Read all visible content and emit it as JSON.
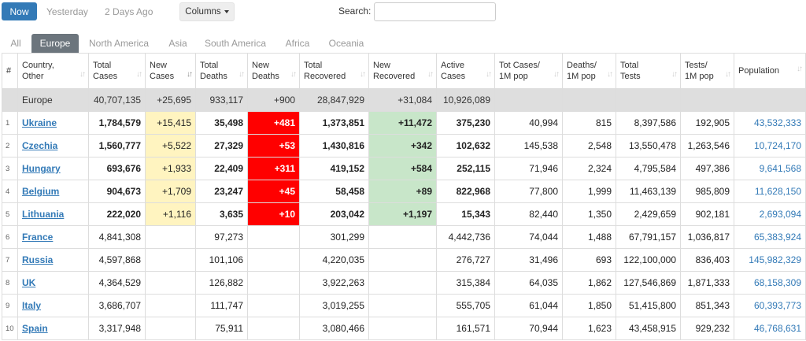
{
  "toolbar": {
    "now": "Now",
    "yesterday": "Yesterday",
    "two_days_ago": "2 Days Ago",
    "columns": "Columns",
    "search_label": "Search:",
    "search_value": ""
  },
  "tabs": [
    "All",
    "Europe",
    "North America",
    "Asia",
    "South America",
    "Africa",
    "Oceania"
  ],
  "active_tab": "Europe",
  "headers": [
    {
      "l1": "#",
      "l2": ""
    },
    {
      "l1": "Country,",
      "l2": "Other"
    },
    {
      "l1": "Total",
      "l2": "Cases"
    },
    {
      "l1": "New",
      "l2": "Cases"
    },
    {
      "l1": "Total",
      "l2": "Deaths"
    },
    {
      "l1": "New",
      "l2": "Deaths"
    },
    {
      "l1": "Total",
      "l2": "Recovered"
    },
    {
      "l1": "New",
      "l2": "Recovered"
    },
    {
      "l1": "Active",
      "l2": "Cases"
    },
    {
      "l1": "Tot Cases/",
      "l2": "1M pop"
    },
    {
      "l1": "Deaths/",
      "l2": "1M pop"
    },
    {
      "l1": "Total",
      "l2": "Tests"
    },
    {
      "l1": "Tests/",
      "l2": "1M pop"
    },
    {
      "l1": "Population",
      "l2": ""
    }
  ],
  "colors": {
    "accent": "#337ab7",
    "new_cases_bg": "#fff4c0",
    "new_deaths_bg": "#ff0000",
    "new_recovered_bg": "#c8e6c9",
    "total_row_bg": "#dedede"
  },
  "total_row": [
    "",
    "Europe",
    "40,707,135",
    "+25,695",
    "933,117",
    "+900",
    "28,847,929",
    "+31,084",
    "10,926,089",
    "",
    "",
    "",
    "",
    ""
  ],
  "rows": [
    [
      "1",
      "Ukraine",
      "1,784,579",
      "+15,415",
      "35,498",
      "+481",
      "1,373,851",
      "+11,472",
      "375,230",
      "40,994",
      "815",
      "8,397,586",
      "192,905",
      "43,532,333"
    ],
    [
      "2",
      "Czechia",
      "1,560,777",
      "+5,522",
      "27,329",
      "+53",
      "1,430,816",
      "+342",
      "102,632",
      "145,538",
      "2,548",
      "13,550,478",
      "1,263,546",
      "10,724,170"
    ],
    [
      "3",
      "Hungary",
      "693,676",
      "+1,933",
      "22,409",
      "+311",
      "419,152",
      "+584",
      "252,115",
      "71,946",
      "2,324",
      "4,795,584",
      "497,386",
      "9,641,568"
    ],
    [
      "4",
      "Belgium",
      "904,673",
      "+1,709",
      "23,247",
      "+45",
      "58,458",
      "+89",
      "822,968",
      "77,800",
      "1,999",
      "11,463,139",
      "985,809",
      "11,628,150"
    ],
    [
      "5",
      "Lithuania",
      "222,020",
      "+1,116",
      "3,635",
      "+10",
      "203,042",
      "+1,197",
      "15,343",
      "82,440",
      "1,350",
      "2,429,659",
      "902,181",
      "2,693,094"
    ],
    [
      "6",
      "France",
      "4,841,308",
      "",
      "97,273",
      "",
      "301,299",
      "",
      "4,442,736",
      "74,044",
      "1,488",
      "67,791,157",
      "1,036,817",
      "65,383,924"
    ],
    [
      "7",
      "Russia",
      "4,597,868",
      "",
      "101,106",
      "",
      "4,220,035",
      "",
      "276,727",
      "31,496",
      "693",
      "122,100,000",
      "836,403",
      "145,982,329"
    ],
    [
      "8",
      "UK",
      "4,364,529",
      "",
      "126,882",
      "",
      "3,922,263",
      "",
      "315,384",
      "64,035",
      "1,862",
      "127,546,869",
      "1,871,333",
      "68,158,309"
    ],
    [
      "9",
      "Italy",
      "3,686,707",
      "",
      "111,747",
      "",
      "3,019,255",
      "",
      "555,705",
      "61,044",
      "1,850",
      "51,415,800",
      "851,343",
      "60,393,773"
    ],
    [
      "10",
      "Spain",
      "3,317,948",
      "",
      "75,911",
      "",
      "3,080,466",
      "",
      "161,571",
      "70,944",
      "1,623",
      "43,458,915",
      "929,232",
      "46,768,631"
    ]
  ]
}
